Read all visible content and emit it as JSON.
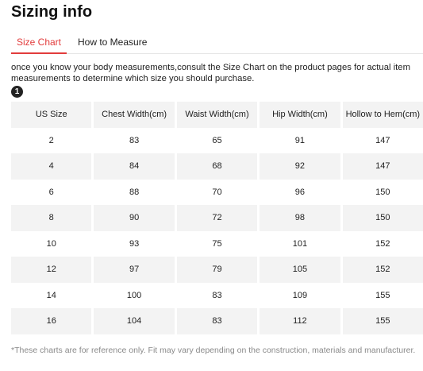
{
  "page": {
    "title": "Sizing info"
  },
  "tabs": [
    {
      "label": "Size Chart",
      "active": true
    },
    {
      "label": "How to Measure",
      "active": false
    }
  ],
  "intro_text": "once you know your body measurements,consult the Size Chart on the product pages for actual item measurements to determine which size you should purchase.",
  "step_badge": "1",
  "size_table": {
    "headers": [
      "US Size",
      "Chest Width(cm)",
      "Waist Width(cm)",
      "Hip Width(cm)",
      "Hollow to Hem(cm)"
    ],
    "rows": [
      [
        "2",
        "83",
        "65",
        "91",
        "147"
      ],
      [
        "4",
        "84",
        "68",
        "92",
        "147"
      ],
      [
        "6",
        "88",
        "70",
        "96",
        "150"
      ],
      [
        "8",
        "90",
        "72",
        "98",
        "150"
      ],
      [
        "10",
        "93",
        "75",
        "101",
        "152"
      ],
      [
        "12",
        "97",
        "79",
        "105",
        "152"
      ],
      [
        "14",
        "100",
        "83",
        "109",
        "155"
      ],
      [
        "16",
        "104",
        "83",
        "112",
        "155"
      ]
    ]
  },
  "footnote": "*These charts are for reference only. Fit may vary depending on the construction, materials and manufacturer.",
  "colors": {
    "accent": "#e23c3c",
    "row_shade": "#f3f3f3",
    "footnote": "#8a8a8a"
  }
}
